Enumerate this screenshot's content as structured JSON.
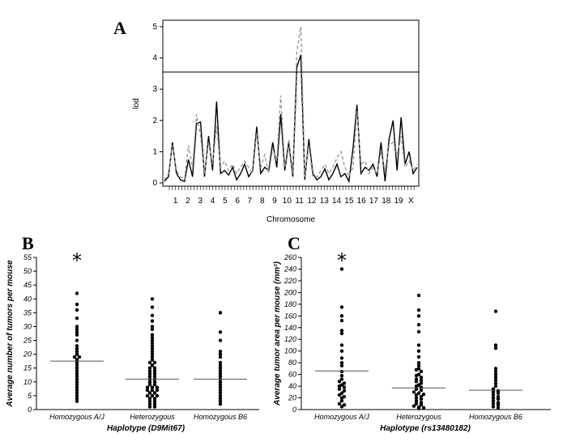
{
  "chart_data": [
    {
      "panel": "A",
      "type": "line",
      "ylabel": "lod",
      "xlabel": "Chromosome",
      "ylim": [
        0,
        5
      ],
      "yticks": [
        0,
        1,
        2,
        3,
        4,
        5
      ],
      "threshold": 3.55,
      "chromosomes": [
        "1",
        "2",
        "3",
        "4",
        "5",
        "6",
        "7",
        "8",
        "9",
        "10",
        "11",
        "12",
        "13",
        "14",
        "15",
        "16",
        "17",
        "18",
        "19",
        "X"
      ],
      "series": [
        {
          "style": "solid",
          "color": "#000000",
          "values": [
            0.05,
            0.2,
            1.3,
            0.3,
            0.1,
            0.05,
            0.75,
            0.2,
            1.9,
            1.95,
            0.2,
            1.5,
            0.4,
            2.6,
            0.3,
            0.4,
            0.25,
            0.5,
            0.1,
            0.3,
            0.6,
            0.2,
            0.4,
            1.8,
            0.3,
            0.5,
            0.4,
            1.3,
            0.5,
            2.2,
            0.4,
            1.3,
            0.2,
            3.7,
            4.1,
            0.1,
            1.4,
            0.3,
            0.1,
            0.2,
            0.45,
            0.1,
            0.3,
            0.6,
            0.2,
            0.3,
            0.05,
            1.1,
            2.5,
            0.3,
            0.5,
            0.4,
            0.6,
            0.2,
            1.3,
            0.05,
            1.4,
            2.0,
            0.4,
            2.1,
            0.6,
            1.0,
            0.3,
            0.5
          ]
        },
        {
          "style": "dashed",
          "color": "#999999",
          "values": [
            0.1,
            0.3,
            1.2,
            0.4,
            0.2,
            0.1,
            1.2,
            0.5,
            2.2,
            1.5,
            0.3,
            1.3,
            0.6,
            1.8,
            0.5,
            0.7,
            0.4,
            0.6,
            0.3,
            0.5,
            0.7,
            0.5,
            0.3,
            1.6,
            0.5,
            0.9,
            0.3,
            1.1,
            0.7,
            2.8,
            0.5,
            1.4,
            0.3,
            4.2,
            5.0,
            0.2,
            1.2,
            0.2,
            0.2,
            0.4,
            0.6,
            0.3,
            0.5,
            0.8,
            1.0,
            0.5,
            0.2,
            0.5,
            2.3,
            0.6,
            0.7,
            0.3,
            0.5,
            0.3,
            1.0,
            0.4,
            1.2,
            1.3,
            0.9,
            1.5,
            0.5,
            0.7,
            0.4,
            0.6
          ]
        }
      ]
    },
    {
      "panel": "B",
      "type": "scatter",
      "ylabel": "Average number of tumors per mouse",
      "xlabel": "Haplotype (D9Mit67)",
      "ylim": [
        0,
        55
      ],
      "yticks": [
        0,
        5,
        10,
        15,
        20,
        25,
        30,
        35,
        40,
        45,
        50,
        55
      ],
      "categories": [
        "Homozygous A/J",
        "Heterozygous",
        "Homozygous B6"
      ],
      "significance_marker": "*",
      "means": [
        17.5,
        11,
        11
      ],
      "points": [
        [
          42,
          38,
          36,
          33,
          30,
          29,
          28,
          27,
          25,
          23,
          22,
          21,
          20,
          19,
          19,
          18,
          17,
          16,
          15,
          14,
          13,
          12,
          11,
          10,
          9,
          8,
          7,
          6,
          5,
          4,
          3
        ],
        [
          40,
          37,
          34,
          32,
          30,
          29,
          27,
          26,
          25,
          24,
          23,
          22,
          21,
          20,
          19,
          18,
          17,
          17,
          16,
          15,
          15,
          14,
          14,
          13,
          13,
          12,
          12,
          11,
          11,
          10,
          10,
          9,
          9,
          8,
          8,
          8,
          7,
          7,
          7,
          6,
          6,
          5,
          5,
          5,
          4,
          4,
          3,
          3,
          2,
          2,
          1,
          1
        ],
        [
          35,
          28,
          25,
          21,
          20,
          19,
          17,
          16,
          15,
          14,
          13,
          12,
          11,
          10,
          9,
          8,
          7,
          6,
          5,
          4,
          3,
          2
        ]
      ]
    },
    {
      "panel": "C",
      "type": "scatter",
      "ylabel": "Average tumor area per mouse (mm²)",
      "xlabel": "Haplotype  (rs13480182)",
      "ylim": [
        0,
        260
      ],
      "yticks": [
        0,
        20,
        40,
        60,
        80,
        100,
        120,
        140,
        160,
        180,
        200,
        220,
        240,
        260
      ],
      "categories": [
        "Homozygous A/J",
        "Heterozygous",
        "Homozygous B6"
      ],
      "significance_marker": "*",
      "means": [
        66,
        37,
        33
      ],
      "points": [
        [
          240,
          175,
          160,
          152,
          135,
          130,
          110,
          100,
          88,
          80,
          75,
          65,
          58,
          52,
          48,
          45,
          42,
          40,
          38,
          35,
          32,
          28,
          25,
          22,
          20,
          15,
          10,
          8,
          5
        ],
        [
          195,
          170,
          160,
          145,
          133,
          110,
          100,
          90,
          80,
          75,
          70,
          68,
          65,
          60,
          58,
          55,
          52,
          50,
          48,
          45,
          42,
          40,
          38,
          35,
          33,
          30,
          28,
          26,
          25,
          22,
          20,
          18,
          15,
          12,
          10,
          8,
          6,
          4,
          3,
          2
        ],
        [
          168,
          110,
          105,
          70,
          65,
          60,
          55,
          50,
          45,
          40,
          35,
          32,
          30,
          28,
          25,
          22,
          20,
          18,
          15,
          12,
          10,
          8,
          5,
          3
        ]
      ]
    }
  ]
}
